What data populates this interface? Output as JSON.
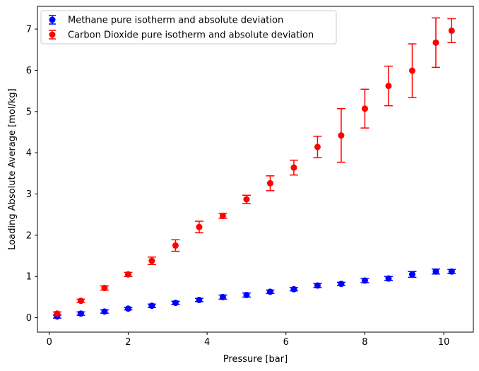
{
  "chart_data": {
    "type": "scatter",
    "title": "",
    "xlabel": "Pressure [bar]",
    "ylabel": "Loading Absolute Average [mol/kg]",
    "xlim": [
      -0.3,
      10.75
    ],
    "ylim": [
      -0.35,
      7.55
    ],
    "xticks": [
      0,
      2,
      4,
      6,
      8,
      10
    ],
    "yticks": [
      0,
      1,
      2,
      3,
      4,
      5,
      6,
      7
    ],
    "grid": false,
    "legend_position": "upper-left",
    "x": [
      0.2,
      0.8,
      1.4,
      2.0,
      2.6,
      3.2,
      3.8,
      4.4,
      5.0,
      5.6,
      6.2,
      6.8,
      7.4,
      8.0,
      8.6,
      9.2,
      9.8,
      10.2
    ],
    "series": [
      {
        "name": "Methane pure isotherm and absolute deviation",
        "color": "#0000ff",
        "values": [
          0.03,
          0.1,
          0.15,
          0.22,
          0.29,
          0.36,
          0.43,
          0.5,
          0.55,
          0.63,
          0.69,
          0.78,
          0.82,
          0.9,
          0.95,
          1.05,
          1.12,
          1.12
        ],
        "errors": [
          0.04,
          0.04,
          0.04,
          0.03,
          0.04,
          0.04,
          0.04,
          0.05,
          0.05,
          0.04,
          0.04,
          0.05,
          0.04,
          0.05,
          0.05,
          0.07,
          0.06,
          0.05
        ]
      },
      {
        "name": "Carbon Dioxide pure isotherm and absolute deviation",
        "color": "#ff0000",
        "values": [
          0.1,
          0.41,
          0.72,
          1.05,
          1.38,
          1.75,
          2.2,
          2.47,
          2.87,
          3.26,
          3.64,
          4.14,
          4.42,
          5.07,
          5.62,
          5.99,
          6.67,
          6.96
        ],
        "errors": [
          0.04,
          0.04,
          0.05,
          0.05,
          0.09,
          0.14,
          0.14,
          0.06,
          0.1,
          0.18,
          0.18,
          0.26,
          0.65,
          0.47,
          0.48,
          0.65,
          0.6,
          0.29
        ]
      }
    ]
  }
}
